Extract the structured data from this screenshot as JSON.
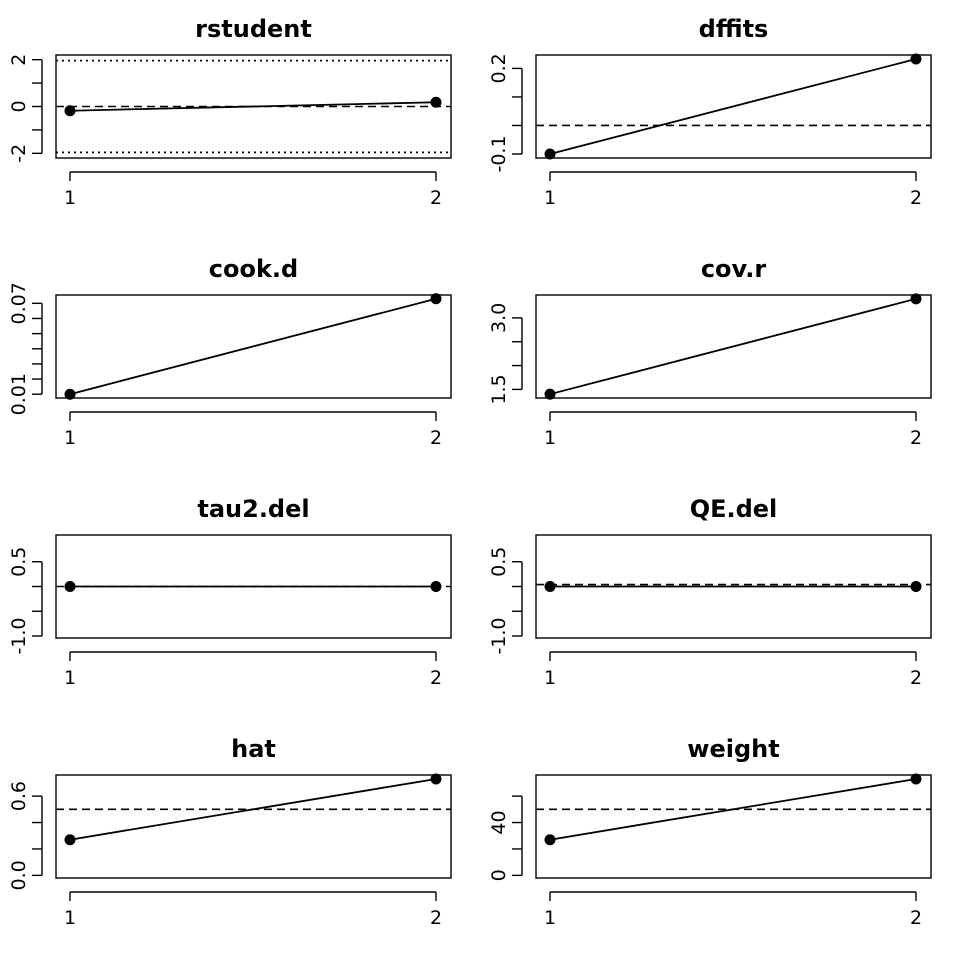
{
  "chart_data": [
    {
      "type": "line",
      "title": "rstudent",
      "x": [
        1,
        2
      ],
      "xticks": [
        "1",
        "2"
      ],
      "values": [
        -0.18,
        0.18
      ],
      "ylim": [
        -2.2,
        2.2
      ],
      "yticks": [
        -2,
        -1,
        0,
        1,
        2
      ],
      "ytick_labels": [
        "-2",
        "",
        "0",
        "",
        "2"
      ],
      "ref_lines": [
        {
          "y": 0,
          "style": "dashed"
        },
        {
          "y": 1.96,
          "style": "dotted"
        },
        {
          "y": -1.96,
          "style": "dotted"
        }
      ]
    },
    {
      "type": "line",
      "title": "dffits",
      "x": [
        1,
        2
      ],
      "xticks": [
        "1",
        "2"
      ],
      "values": [
        -0.1,
        0.233
      ],
      "ylim": [
        -0.114,
        0.247
      ],
      "yticks": [
        -0.1,
        0.0,
        0.1,
        0.2
      ],
      "ytick_labels": [
        "-0.1",
        "",
        "",
        "0.2"
      ],
      "ref_lines": [
        {
          "y": 0.0,
          "style": "dashed"
        }
      ]
    },
    {
      "type": "line",
      "title": "cook.d",
      "x": [
        1,
        2
      ],
      "xticks": [
        "1",
        "2"
      ],
      "values": [
        0.01,
        0.073
      ],
      "ylim": [
        0.0075,
        0.0755
      ],
      "yticks": [
        0.01,
        0.02,
        0.03,
        0.04,
        0.05,
        0.06,
        0.07
      ],
      "ytick_labels": [
        "0.01",
        "",
        "",
        "",
        "",
        "",
        "0.07"
      ],
      "ref_lines": []
    },
    {
      "type": "line",
      "title": "cov.r",
      "x": [
        1,
        2
      ],
      "xticks": [
        "1",
        "2"
      ],
      "values": [
        1.4,
        3.4
      ],
      "ylim": [
        1.32,
        3.48
      ],
      "yticks": [
        1.5,
        2.0,
        2.5,
        3.0
      ],
      "ytick_labels": [
        "1.5",
        "",
        "",
        "3.0"
      ],
      "ref_lines": []
    },
    {
      "type": "line",
      "title": "tau2.del",
      "x": [
        1,
        2
      ],
      "xticks": [
        "1",
        "2"
      ],
      "values": [
        0.0,
        0.0
      ],
      "ylim": [
        -1.04,
        1.04
      ],
      "yticks": [
        -1.0,
        -0.5,
        0.0,
        0.5
      ],
      "ytick_labels": [
        "-1.0",
        "",
        "",
        "0.5"
      ],
      "ref_lines": [
        {
          "y": 0.0,
          "style": "dashed"
        }
      ]
    },
    {
      "type": "line",
      "title": "QE.del",
      "x": [
        1,
        2
      ],
      "xticks": [
        "1",
        "2"
      ],
      "values": [
        0.0,
        0.0
      ],
      "ylim": [
        -1.04,
        1.04
      ],
      "yticks": [
        -1.0,
        -0.5,
        0.0,
        0.5
      ],
      "ytick_labels": [
        "-1.0",
        "",
        "",
        "0.5"
      ],
      "ref_lines": [
        {
          "y": 0.04,
          "style": "dashed"
        }
      ]
    },
    {
      "type": "line",
      "title": "hat",
      "x": [
        1,
        2
      ],
      "xticks": [
        "1",
        "2"
      ],
      "values": [
        0.27,
        0.73
      ],
      "ylim": [
        -0.02,
        0.76
      ],
      "yticks": [
        0.0,
        0.2,
        0.4,
        0.6
      ],
      "ytick_labels": [
        "0.0",
        "",
        "",
        "0.6"
      ],
      "ref_lines": [
        {
          "y": 0.5,
          "style": "dashed"
        }
      ]
    },
    {
      "type": "line",
      "title": "weight",
      "x": [
        1,
        2
      ],
      "xticks": [
        "1",
        "2"
      ],
      "values": [
        27,
        73
      ],
      "ylim": [
        -2,
        76
      ],
      "yticks": [
        0,
        20,
        40,
        60
      ],
      "ytick_labels": [
        "0",
        "",
        "40",
        ""
      ],
      "ref_lines": [
        {
          "y": 50,
          "style": "dashed"
        }
      ]
    }
  ]
}
